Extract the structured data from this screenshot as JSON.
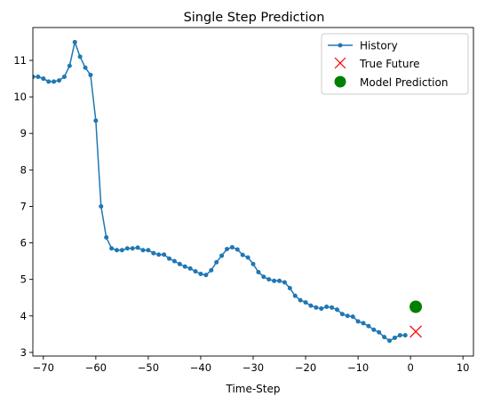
{
  "chart_data": {
    "type": "line",
    "title": "Single Step Prediction",
    "xlabel": "Time-Step",
    "ylabel": "",
    "xlim": [
      -72,
      12
    ],
    "ylim": [
      2.9,
      11.9
    ],
    "xticks": [
      -70,
      -60,
      -50,
      -40,
      -30,
      -20,
      -10,
      0,
      10
    ],
    "yticks": [
      3,
      4,
      5,
      6,
      7,
      8,
      9,
      10,
      11
    ],
    "grid": false,
    "legend_position": "top-right",
    "series": [
      {
        "name": "History",
        "style": "line-dots",
        "color": "#1f77b4",
        "x": [
          -72,
          -71,
          -70,
          -69,
          -68,
          -67,
          -66,
          -65,
          -64,
          -63,
          -62,
          -61,
          -60,
          -59,
          -58,
          -57,
          -56,
          -55,
          -54,
          -53,
          -52,
          -51,
          -50,
          -49,
          -48,
          -47,
          -46,
          -45,
          -44,
          -43,
          -42,
          -41,
          -40,
          -39,
          -38,
          -37,
          -36,
          -35,
          -34,
          -33,
          -32,
          -31,
          -30,
          -29,
          -28,
          -27,
          -26,
          -25,
          -24,
          -23,
          -22,
          -21,
          -20,
          -19,
          -18,
          -17,
          -16,
          -15,
          -14,
          -13,
          -12,
          -11,
          -10,
          -9,
          -8,
          -7,
          -6,
          -5,
          -4,
          -3,
          -2,
          -1
        ],
        "y": [
          10.55,
          10.55,
          10.5,
          10.42,
          10.42,
          10.45,
          10.55,
          10.85,
          11.5,
          11.1,
          10.8,
          10.6,
          9.35,
          7.0,
          6.15,
          5.85,
          5.8,
          5.8,
          5.85,
          5.85,
          5.87,
          5.8,
          5.8,
          5.72,
          5.68,
          5.68,
          5.57,
          5.5,
          5.42,
          5.35,
          5.3,
          5.22,
          5.15,
          5.12,
          5.25,
          5.47,
          5.65,
          5.83,
          5.88,
          5.82,
          5.67,
          5.6,
          5.42,
          5.2,
          5.07,
          5.0,
          4.96,
          4.96,
          4.92,
          4.76,
          4.55,
          4.43,
          4.37,
          4.28,
          4.23,
          4.2,
          4.25,
          4.23,
          4.17,
          4.05,
          4.0,
          3.98,
          3.85,
          3.8,
          3.72,
          3.62,
          3.55,
          3.42,
          3.32,
          3.4,
          3.47,
          3.47
        ]
      },
      {
        "name": "True Future",
        "style": "x-marker",
        "color": "#ff0000",
        "x": [
          1
        ],
        "y": [
          3.57
        ]
      },
      {
        "name": "Model Prediction",
        "style": "circle-marker",
        "color": "#008000",
        "x": [
          1
        ],
        "y": [
          4.25
        ]
      }
    ]
  }
}
